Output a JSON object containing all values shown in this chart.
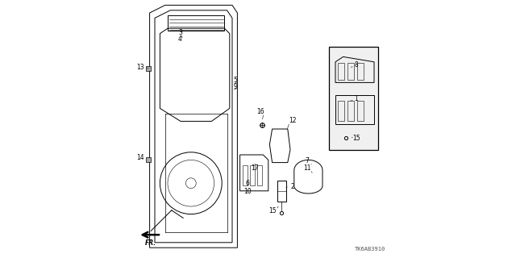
{
  "background_color": "#ffffff",
  "line_color": "#000000",
  "watermark": "TK6AB3910"
}
